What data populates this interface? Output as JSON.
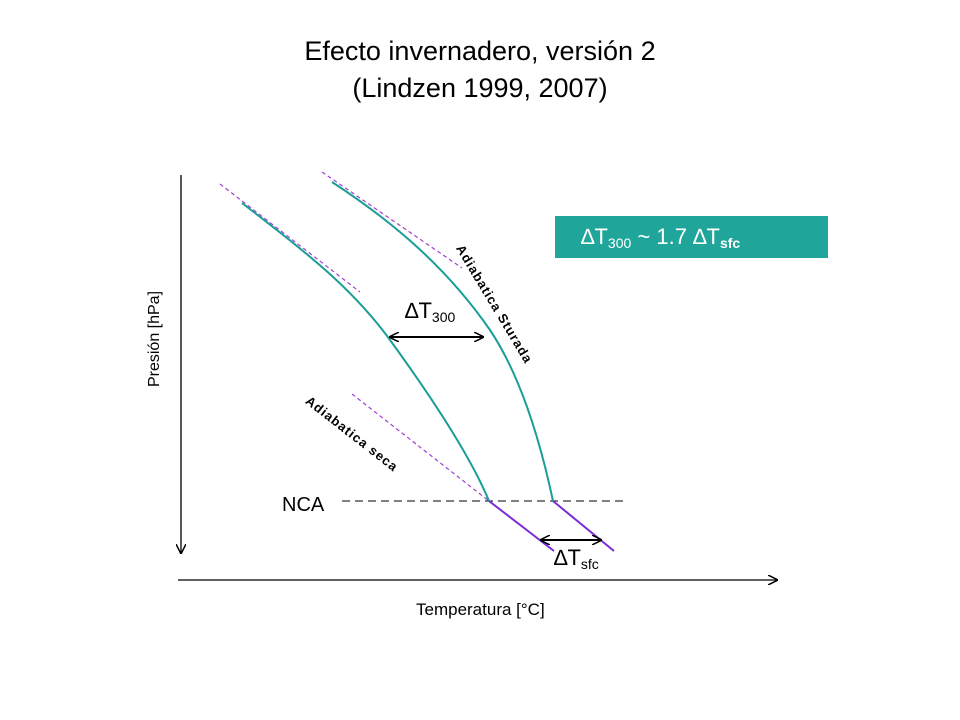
{
  "title": {
    "line1": "Efecto invernadero, versión 2",
    "line2": "(Lindzen 1999, 2007)"
  },
  "axes": {
    "x_label": "Temperatura [°C]",
    "y_label": "Presión [hPa]"
  },
  "labels": {
    "nca": "NCA",
    "dry_adiabat": "Adiabatica seca",
    "saturated_adiabat": "Adiabatica Sturada",
    "delta_symbol": "∆T",
    "delta_t300_sub": "300",
    "delta_tsfc_sub": "sfc"
  },
  "formula": {
    "lhs_sub": "300",
    "operator": "~ 1.7",
    "rhs_sub": "sfc",
    "delta": "∆T"
  },
  "colors": {
    "profile": "#1a9e96",
    "dry_segment": "#7b2bd6",
    "dashed_guide": "#a040d0",
    "box": "#20a59b"
  }
}
